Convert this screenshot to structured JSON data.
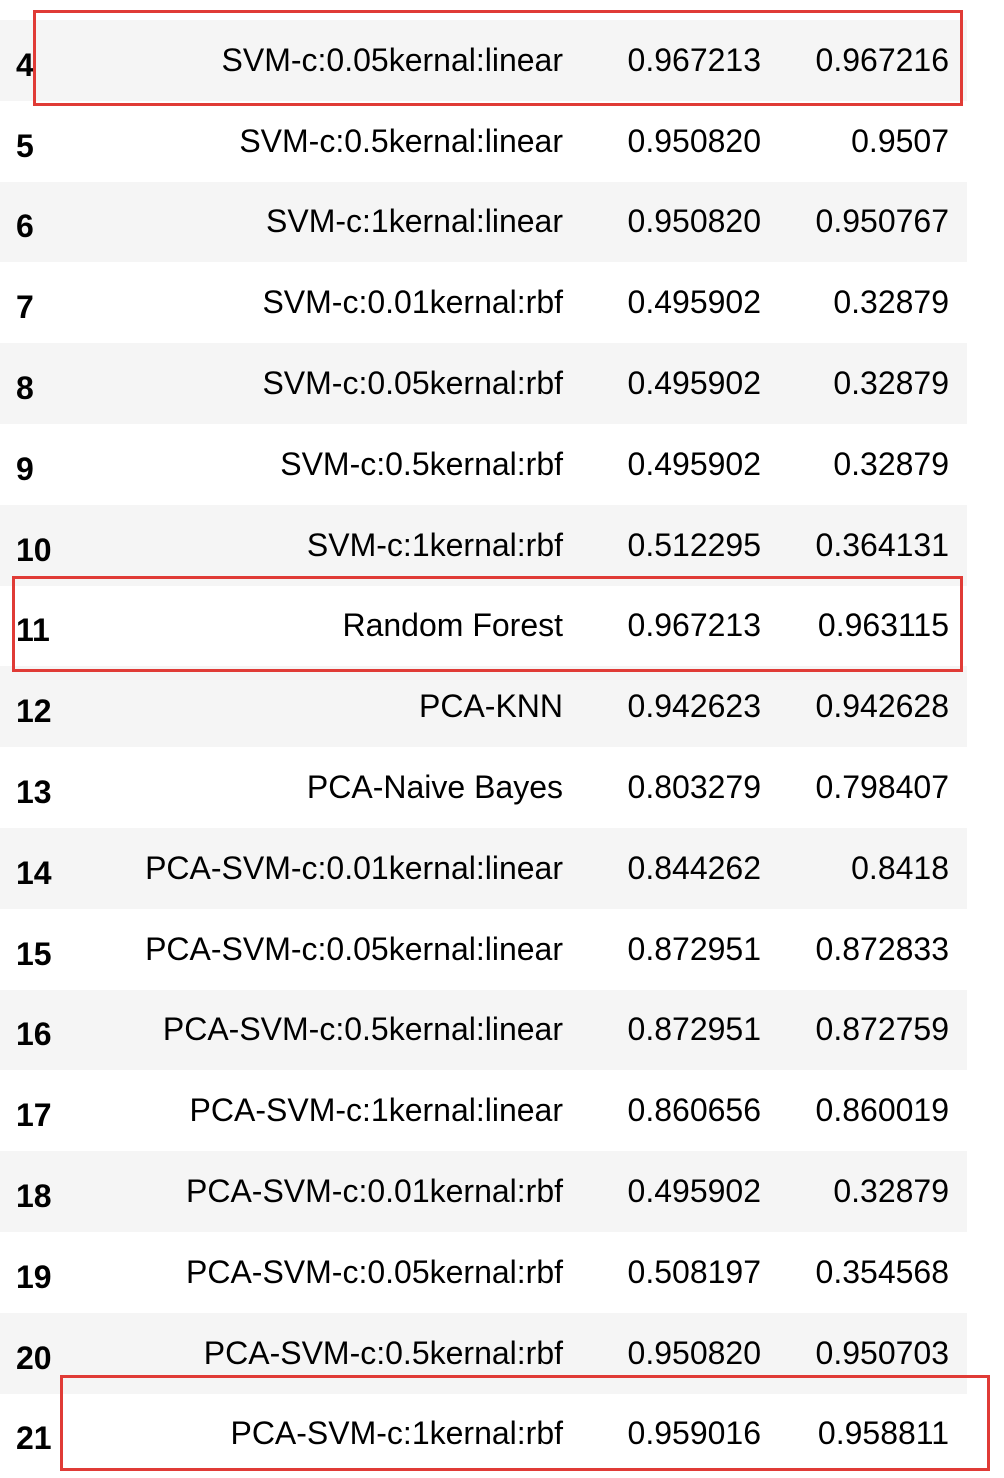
{
  "table": {
    "rows": [
      {
        "index": "4",
        "model": "SVM-c:0.05kernal:linear",
        "accuracy": "0.967213",
        "f1": "0.967216"
      },
      {
        "index": "5",
        "model": "SVM-c:0.5kernal:linear",
        "accuracy": "0.950820",
        "f1": "0.9507"
      },
      {
        "index": "6",
        "model": "SVM-c:1kernal:linear",
        "accuracy": "0.950820",
        "f1": "0.950767"
      },
      {
        "index": "7",
        "model": "SVM-c:0.01kernal:rbf",
        "accuracy": "0.495902",
        "f1": "0.32879"
      },
      {
        "index": "8",
        "model": "SVM-c:0.05kernal:rbf",
        "accuracy": "0.495902",
        "f1": "0.32879"
      },
      {
        "index": "9",
        "model": "SVM-c:0.5kernal:rbf",
        "accuracy": "0.495902",
        "f1": "0.32879"
      },
      {
        "index": "10",
        "model": "SVM-c:1kernal:rbf",
        "accuracy": "0.512295",
        "f1": "0.364131"
      },
      {
        "index": "11",
        "model": "Random Forest",
        "accuracy": "0.967213",
        "f1": "0.963115"
      },
      {
        "index": "12",
        "model": "PCA-KNN",
        "accuracy": "0.942623",
        "f1": "0.942628"
      },
      {
        "index": "13",
        "model": "PCA-Naive Bayes",
        "accuracy": "0.803279",
        "f1": "0.798407"
      },
      {
        "index": "14",
        "model": "PCA-SVM-c:0.01kernal:linear",
        "accuracy": "0.844262",
        "f1": "0.8418"
      },
      {
        "index": "15",
        "model": "PCA-SVM-c:0.05kernal:linear",
        "accuracy": "0.872951",
        "f1": "0.872833"
      },
      {
        "index": "16",
        "model": "PCA-SVM-c:0.5kernal:linear",
        "accuracy": "0.872951",
        "f1": "0.872759"
      },
      {
        "index": "17",
        "model": "PCA-SVM-c:1kernal:linear",
        "accuracy": "0.860656",
        "f1": "0.860019"
      },
      {
        "index": "18",
        "model": "PCA-SVM-c:0.01kernal:rbf",
        "accuracy": "0.495902",
        "f1": "0.32879"
      },
      {
        "index": "19",
        "model": "PCA-SVM-c:0.05kernal:rbf",
        "accuracy": "0.508197",
        "f1": "0.354568"
      },
      {
        "index": "20",
        "model": "PCA-SVM-c:0.5kernal:rbf",
        "accuracy": "0.950820",
        "f1": "0.950703"
      },
      {
        "index": "21",
        "model": "PCA-SVM-c:1kernal:rbf",
        "accuracy": "0.959016",
        "f1": "0.958811"
      }
    ]
  },
  "highlight_color": "#e03b36"
}
